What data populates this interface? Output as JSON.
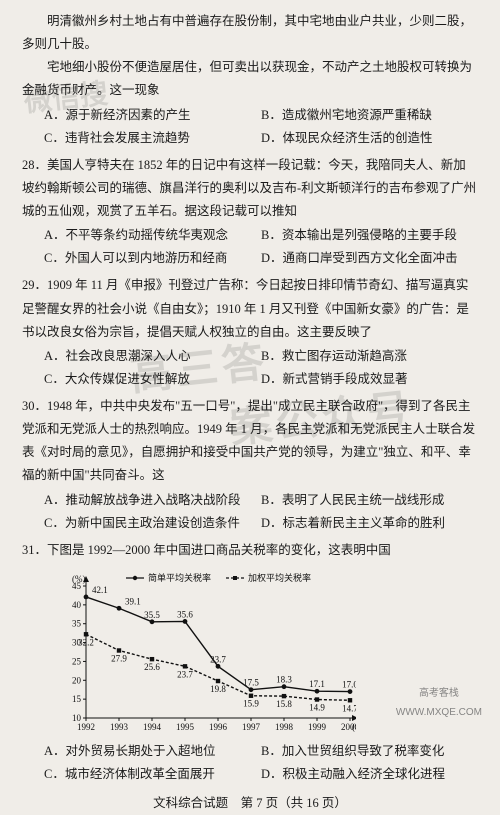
{
  "q27": {
    "intro1": "明清徽州乡村土地占有中普遍存在股份制，其中宅地由业户共业，少则二股，多则几十股。",
    "intro2": "宅地细小股份不便造屋居住，但可卖出以获现金，不动产之土地股权可转换为金融货币财产。这一现象",
    "A": "A．源于新经济因素的产生",
    "B": "B．造成徽州宅地资源严重稀缺",
    "C": "C．违背社会发展主流趋势",
    "D": "D．体现民众经济生活的创造性"
  },
  "q28": {
    "num": "28．",
    "stem": "美国人亨特夫在 1852 年的日记中有这样一段记载：今天，我陪同夫人、新加坡约翰斯顿公司的瑞德、旗昌洋行的奥利以及吉布-利文斯顿洋行的吉布参观了广州城的五仙观，观赏了五羊石。据这段记载可以推知",
    "A": "A．不平等条约动摇传统华夷观念",
    "B": "B．资本输出是列强侵略的主要手段",
    "C": "C．外国人可以到内地游历和经商",
    "D": "D．通商口岸受到西方文化全面冲击"
  },
  "q29": {
    "num": "29．",
    "stem": "1909 年 11 月《申报》刊登过广告称：今日起按日排印情节奇幻、描写逼真实足警醒女界的社会小说《自由女》；1910 年 1 月又刊登《中国新女豪》的广告：是书以改良女俗为宗旨，提倡天赋人权独立的自由。这主要反映了",
    "A": "A．社会改良思潮深入人心",
    "B": "B．救亡图存运动渐趋高涨",
    "C": "C．大众传媒促进女性解放",
    "D": "D．新式营销手段成效显著"
  },
  "q30": {
    "num": "30．",
    "stem": "1948 年，中共中央发布\"五一口号\"，提出\"成立民主联合政府\"，得到了各民主党派和无党派人士的热烈响应。1949 年 1 月，各民主党派和无党派民主人士联合发表《对时局的意见》，自愿拥护和接受中国共产党的领导，为建立\"独立、和平、幸福的新中国\"共同奋斗。这",
    "A": "A．推动解放战争进入战略决战阶段",
    "B": "B．表明了人民民主统一战线形成",
    "C": "C．为新中国民主政治建设创造条件",
    "D": "D．标志着新民主主义革命的胜利"
  },
  "q31": {
    "num": "31．",
    "stem": "下图是 1992—2000 年中国进口商品关税率的变化，这表明中国",
    "A": "A．对外贸易长期处于入超地位",
    "B": "B．加入世贸组织导致了税率变化",
    "C": "C．城市经济体制改革全面展开",
    "D": "D．积极主动融入经济全球化进程"
  },
  "chart": {
    "legend1": "简单平均关税率",
    "legend2": "加权平均关税率",
    "ylabel_pct": "(%)",
    "xlabel": "(年份)",
    "ylim": [
      10,
      45
    ],
    "ytick_step": 5,
    "years": [
      "1992",
      "1993",
      "1994",
      "1995",
      "1996",
      "1997",
      "1998",
      "1999",
      "2000"
    ],
    "simple": [
      42.1,
      39.1,
      35.5,
      35.6,
      23.7,
      17.5,
      18.3,
      17.1,
      17.0
    ],
    "weighted": [
      32.2,
      27.9,
      25.6,
      23.7,
      19.8,
      15.9,
      15.8,
      14.9,
      14.7
    ],
    "line_color": "#111111",
    "bg": "#f0ede8",
    "font_size_axis": 9,
    "font_size_val": 9
  },
  "footer": "文科综合试题　第 7 页（共 16 页）",
  "watermarks": {
    "wm1": "微信搜",
    "wm2": "高三答",
    "wm3": "案公众号"
  },
  "stamp": {
    "l1": "高考客栈",
    "l2": "WWW.MXQE.COM"
  }
}
